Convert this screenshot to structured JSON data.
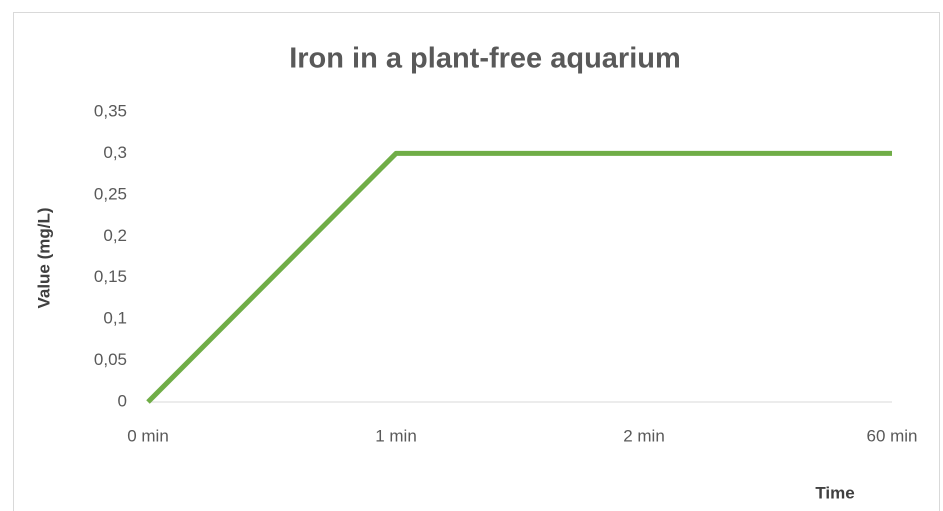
{
  "chart_data": {
    "type": "line",
    "title": "Iron in a plant-free aquarium",
    "x_label": "Time",
    "y_label": "Value (mg/L)",
    "categories": [
      "0 min",
      "1 min",
      "2 min",
      "60 min"
    ],
    "series": [
      {
        "name": "Iron",
        "color": "#70ad47",
        "values": [
          0,
          0.3,
          0.3,
          0.3
        ]
      }
    ],
    "ylim": [
      0,
      0.35
    ],
    "yticks": [
      0,
      {
        "value": 0.05,
        "label": "0,05"
      },
      {
        "value": 0.1,
        "label": "0,1"
      },
      {
        "value": 0.15,
        "label": "0,15"
      },
      {
        "value": 0.2,
        "label": "0,2"
      },
      {
        "value": 0.25,
        "label": "0,25"
      },
      {
        "value": 0.3,
        "label": "0,3"
      },
      {
        "value": 0.35,
        "label": "0,35"
      }
    ],
    "grid": false
  }
}
